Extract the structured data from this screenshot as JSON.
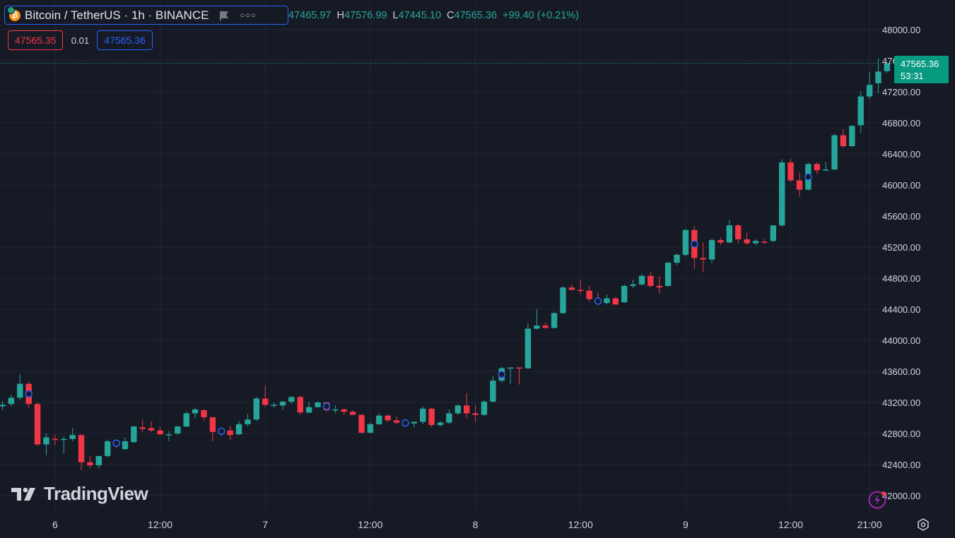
{
  "header": {
    "symbol_title": "Bitcoin / TetherUS · 1h · BINANCE",
    "coin_glyph": "₿",
    "ohlc": {
      "o_value": "47465.97",
      "h_label": "H",
      "h_value": "47576.99",
      "l_label": "L",
      "l_value": "47445.10",
      "c_label": "C",
      "c_value": "47565.36",
      "change": "+99.40 (+0.21%)"
    }
  },
  "trade": {
    "sell_price": "47565.35",
    "spread": "0.01",
    "buy_price": "47565.36"
  },
  "last_price": {
    "price": "47565.36",
    "countdown": "53:31"
  },
  "branding": {
    "logo_text": "TradingView"
  },
  "colors": {
    "up": "#26a69a",
    "down": "#f23645",
    "background": "#161a25",
    "grid": "#232632",
    "marker": "#2962ff"
  },
  "chart_data": {
    "type": "candlestick",
    "ylim": [
      41850,
      48250
    ],
    "y_ticks": [
      42000,
      42400,
      42800,
      43200,
      43600,
      44000,
      44400,
      44800,
      45200,
      45600,
      46000,
      46400,
      46800,
      47200,
      47600,
      48000
    ],
    "x_ticks": [
      {
        "label": "6",
        "index": 6
      },
      {
        "label": "12:00",
        "index": 18
      },
      {
        "label": "7",
        "index": 30
      },
      {
        "label": "12:00",
        "index": 42
      },
      {
        "label": "8",
        "index": 54
      },
      {
        "label": "12:00",
        "index": 66
      },
      {
        "label": "9",
        "index": 78
      },
      {
        "label": "12:00",
        "index": 90
      },
      {
        "label": "21:00",
        "index": 99
      }
    ],
    "last_price": 47565.36,
    "candles": [
      {
        "o": 43150,
        "h": 43220,
        "l": 43100,
        "c": 43170
      },
      {
        "o": 43180,
        "h": 43300,
        "l": 43150,
        "c": 43260
      },
      {
        "o": 43260,
        "h": 43560,
        "l": 43230,
        "c": 43440
      },
      {
        "o": 43440,
        "h": 43470,
        "l": 43130,
        "c": 43180
      },
      {
        "o": 43180,
        "h": 43200,
        "l": 42640,
        "c": 42660
      },
      {
        "o": 42660,
        "h": 42800,
        "l": 42520,
        "c": 42750
      },
      {
        "o": 42730,
        "h": 42790,
        "l": 42650,
        "c": 42720
      },
      {
        "o": 42720,
        "h": 42760,
        "l": 42540,
        "c": 42730
      },
      {
        "o": 42730,
        "h": 42870,
        "l": 42700,
        "c": 42780
      },
      {
        "o": 42780,
        "h": 42790,
        "l": 42330,
        "c": 42430
      },
      {
        "o": 42430,
        "h": 42510,
        "l": 42360,
        "c": 42390
      },
      {
        "o": 42390,
        "h": 42500,
        "l": 42350,
        "c": 42510
      },
      {
        "o": 42510,
        "h": 42720,
        "l": 42490,
        "c": 42700
      },
      {
        "o": 42700,
        "h": 42710,
        "l": 42610,
        "c": 42650
      },
      {
        "o": 42600,
        "h": 42750,
        "l": 42590,
        "c": 42700
      },
      {
        "o": 42690,
        "h": 42900,
        "l": 42680,
        "c": 42890
      },
      {
        "o": 42880,
        "h": 42980,
        "l": 42820,
        "c": 42860
      },
      {
        "o": 42870,
        "h": 42960,
        "l": 42820,
        "c": 42840
      },
      {
        "o": 42840,
        "h": 42890,
        "l": 42780,
        "c": 42790
      },
      {
        "o": 42790,
        "h": 42830,
        "l": 42700,
        "c": 42790
      },
      {
        "o": 42800,
        "h": 42900,
        "l": 42780,
        "c": 42890
      },
      {
        "o": 42890,
        "h": 43080,
        "l": 42880,
        "c": 43060
      },
      {
        "o": 43060,
        "h": 43130,
        "l": 43000,
        "c": 43110
      },
      {
        "o": 43100,
        "h": 43110,
        "l": 42960,
        "c": 43010
      },
      {
        "o": 43010,
        "h": 43010,
        "l": 42700,
        "c": 42820
      },
      {
        "o": 42820,
        "h": 42870,
        "l": 42770,
        "c": 42840
      },
      {
        "o": 42840,
        "h": 42900,
        "l": 42710,
        "c": 42780
      },
      {
        "o": 42790,
        "h": 42960,
        "l": 42780,
        "c": 42920
      },
      {
        "o": 42920,
        "h": 43050,
        "l": 42890,
        "c": 42980
      },
      {
        "o": 42980,
        "h": 43270,
        "l": 42960,
        "c": 43250
      },
      {
        "o": 43250,
        "h": 43420,
        "l": 43140,
        "c": 43170
      },
      {
        "o": 43160,
        "h": 43200,
        "l": 43130,
        "c": 43170
      },
      {
        "o": 43160,
        "h": 43220,
        "l": 43100,
        "c": 43210
      },
      {
        "o": 43210,
        "h": 43280,
        "l": 43180,
        "c": 43270
      },
      {
        "o": 43270,
        "h": 43290,
        "l": 43040,
        "c": 43070
      },
      {
        "o": 43070,
        "h": 43210,
        "l": 43060,
        "c": 43140
      },
      {
        "o": 43140,
        "h": 43220,
        "l": 43130,
        "c": 43200
      },
      {
        "o": 43200,
        "h": 43210,
        "l": 43080,
        "c": 43100
      },
      {
        "o": 43100,
        "h": 43160,
        "l": 43060,
        "c": 43110
      },
      {
        "o": 43110,
        "h": 43120,
        "l": 43040,
        "c": 43080
      },
      {
        "o": 43080,
        "h": 43100,
        "l": 43040,
        "c": 43040
      },
      {
        "o": 43040,
        "h": 43050,
        "l": 42800,
        "c": 42810
      },
      {
        "o": 42810,
        "h": 42940,
        "l": 42800,
        "c": 42920
      },
      {
        "o": 42920,
        "h": 43060,
        "l": 42910,
        "c": 43030
      },
      {
        "o": 43030,
        "h": 43050,
        "l": 42950,
        "c": 42970
      },
      {
        "o": 42970,
        "h": 43020,
        "l": 42920,
        "c": 42940
      },
      {
        "o": 42940,
        "h": 42990,
        "l": 42900,
        "c": 42930
      },
      {
        "o": 42930,
        "h": 42960,
        "l": 42880,
        "c": 42950
      },
      {
        "o": 42950,
        "h": 43150,
        "l": 42920,
        "c": 43120
      },
      {
        "o": 43120,
        "h": 43130,
        "l": 42880,
        "c": 42910
      },
      {
        "o": 42910,
        "h": 42960,
        "l": 42890,
        "c": 42940
      },
      {
        "o": 42940,
        "h": 43110,
        "l": 42920,
        "c": 43060
      },
      {
        "o": 43060,
        "h": 43180,
        "l": 43040,
        "c": 43160
      },
      {
        "o": 43160,
        "h": 43320,
        "l": 42990,
        "c": 43060
      },
      {
        "o": 43060,
        "h": 43160,
        "l": 42950,
        "c": 43040
      },
      {
        "o": 43040,
        "h": 43230,
        "l": 43030,
        "c": 43210
      },
      {
        "o": 43210,
        "h": 43540,
        "l": 43200,
        "c": 43480
      },
      {
        "o": 43480,
        "h": 43660,
        "l": 43460,
        "c": 43640
      },
      {
        "o": 43640,
        "h": 43650,
        "l": 43440,
        "c": 43650
      },
      {
        "o": 43650,
        "h": 43650,
        "l": 43430,
        "c": 43640
      },
      {
        "o": 43640,
        "h": 44220,
        "l": 43630,
        "c": 44150
      },
      {
        "o": 44150,
        "h": 44400,
        "l": 44140,
        "c": 44190
      },
      {
        "o": 44190,
        "h": 44230,
        "l": 44150,
        "c": 44160
      },
      {
        "o": 44160,
        "h": 44370,
        "l": 44150,
        "c": 44350
      },
      {
        "o": 44350,
        "h": 44700,
        "l": 44340,
        "c": 44680
      },
      {
        "o": 44680,
        "h": 44720,
        "l": 44640,
        "c": 44650
      },
      {
        "o": 44650,
        "h": 44780,
        "l": 44600,
        "c": 44640
      },
      {
        "o": 44640,
        "h": 44700,
        "l": 44500,
        "c": 44530
      },
      {
        "o": 44530,
        "h": 44620,
        "l": 44470,
        "c": 44480
      },
      {
        "o": 44480,
        "h": 44590,
        "l": 44460,
        "c": 44540
      },
      {
        "o": 44540,
        "h": 44560,
        "l": 44460,
        "c": 44460
      },
      {
        "o": 44490,
        "h": 44720,
        "l": 44480,
        "c": 44700
      },
      {
        "o": 44700,
        "h": 44780,
        "l": 44670,
        "c": 44720
      },
      {
        "o": 44720,
        "h": 44850,
        "l": 44700,
        "c": 44830
      },
      {
        "o": 44830,
        "h": 44880,
        "l": 44680,
        "c": 44700
      },
      {
        "o": 44700,
        "h": 44820,
        "l": 44600,
        "c": 44680
      },
      {
        "o": 44700,
        "h": 45010,
        "l": 44690,
        "c": 45000
      },
      {
        "o": 45000,
        "h": 45120,
        "l": 44970,
        "c": 45100
      },
      {
        "o": 45100,
        "h": 45440,
        "l": 45080,
        "c": 45420
      },
      {
        "o": 45420,
        "h": 45470,
        "l": 44920,
        "c": 45060
      },
      {
        "o": 45060,
        "h": 45260,
        "l": 44880,
        "c": 45040
      },
      {
        "o": 45040,
        "h": 45310,
        "l": 44990,
        "c": 45290
      },
      {
        "o": 45290,
        "h": 45320,
        "l": 45230,
        "c": 45260
      },
      {
        "o": 45260,
        "h": 45550,
        "l": 45250,
        "c": 45480
      },
      {
        "o": 45480,
        "h": 45500,
        "l": 45250,
        "c": 45300
      },
      {
        "o": 45300,
        "h": 45390,
        "l": 45230,
        "c": 45250
      },
      {
        "o": 45250,
        "h": 45300,
        "l": 45220,
        "c": 45280
      },
      {
        "o": 45270,
        "h": 45310,
        "l": 45240,
        "c": 45260
      },
      {
        "o": 45280,
        "h": 45480,
        "l": 45260,
        "c": 45480
      },
      {
        "o": 45480,
        "h": 46330,
        "l": 45460,
        "c": 46290
      },
      {
        "o": 46290,
        "h": 46340,
        "l": 46040,
        "c": 46060
      },
      {
        "o": 46060,
        "h": 46160,
        "l": 45850,
        "c": 45940
      },
      {
        "o": 45940,
        "h": 46290,
        "l": 45930,
        "c": 46270
      },
      {
        "o": 46270,
        "h": 46290,
        "l": 46140,
        "c": 46190
      },
      {
        "o": 46190,
        "h": 46300,
        "l": 46180,
        "c": 46200
      },
      {
        "o": 46200,
        "h": 46660,
        "l": 46190,
        "c": 46640
      },
      {
        "o": 46640,
        "h": 46720,
        "l": 46480,
        "c": 46500
      },
      {
        "o": 46500,
        "h": 46770,
        "l": 46490,
        "c": 46760
      },
      {
        "o": 46770,
        "h": 47200,
        "l": 46670,
        "c": 47140
      },
      {
        "o": 47140,
        "h": 47450,
        "l": 47100,
        "c": 47290
      },
      {
        "o": 47310,
        "h": 47630,
        "l": 47180,
        "c": 47460
      },
      {
        "o": 47466,
        "h": 47577,
        "l": 47445,
        "c": 47565
      }
    ],
    "markers": [
      3,
      13,
      25,
      37,
      46,
      57,
      68,
      79,
      92
    ]
  }
}
